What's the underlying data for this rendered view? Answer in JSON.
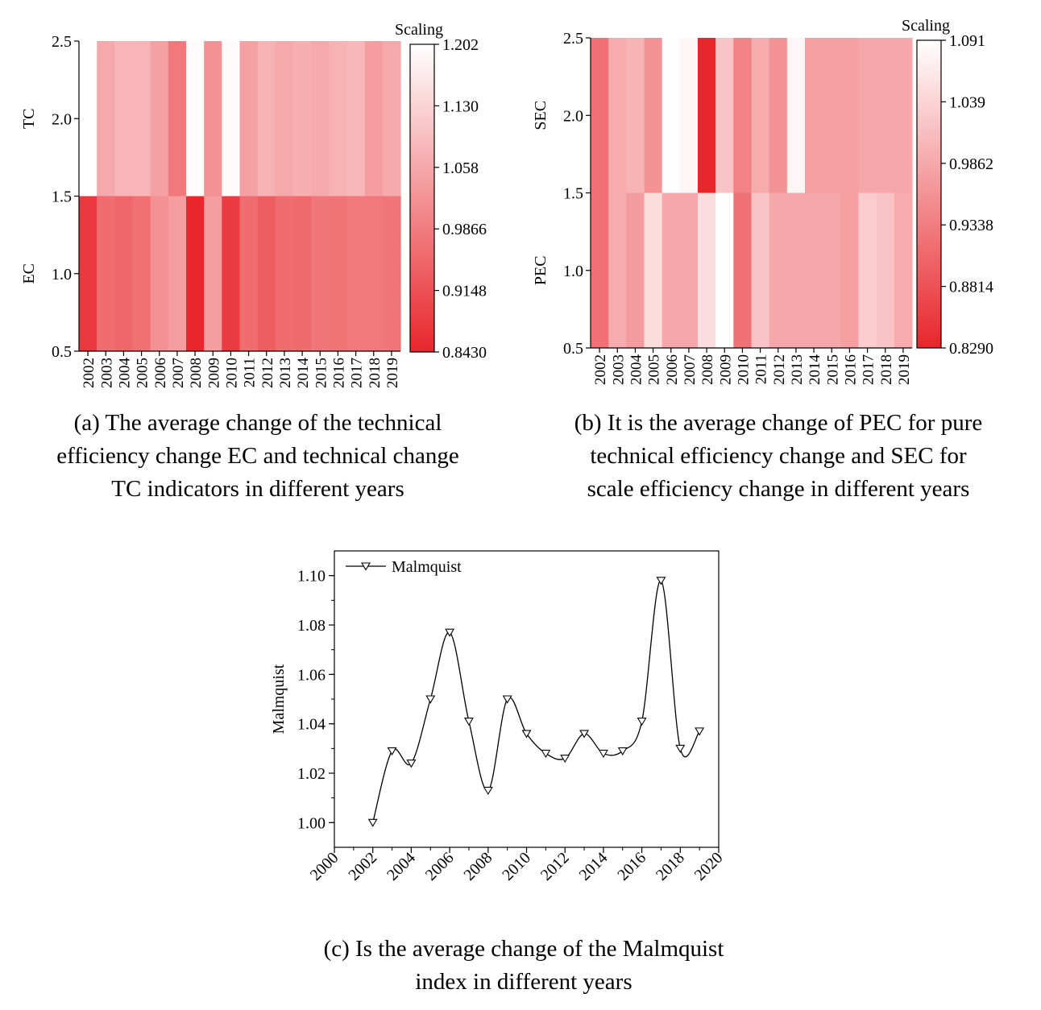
{
  "chart_data": [
    {
      "type": "heatmap",
      "panel": "a",
      "categories": [
        "2002",
        "2003",
        "2004",
        "2005",
        "2006",
        "2007",
        "2008",
        "2009",
        "2010",
        "2011",
        "2012",
        "2013",
        "2014",
        "2015",
        "2016",
        "2017",
        "2018",
        "2019"
      ],
      "rows": [
        {
          "name": "TC",
          "values": [
            1.202,
            1.06,
            1.08,
            1.08,
            1.045,
            0.98,
            1.195,
            1.02,
            1.195,
            1.045,
            1.075,
            1.06,
            1.07,
            1.06,
            1.075,
            1.085,
            1.04,
            1.06
          ]
        },
        {
          "name": "EC",
          "values": [
            0.875,
            0.96,
            0.95,
            0.965,
            1.02,
            1.04,
            0.843,
            1.04,
            0.88,
            0.96,
            0.935,
            0.96,
            0.955,
            0.975,
            0.97,
            0.98,
            0.98,
            0.975
          ]
        }
      ],
      "yticks": [
        "0.5",
        "1.0",
        "1.5",
        "2.0",
        "2.5"
      ],
      "ylim": [
        0.5,
        2.5
      ],
      "ylabels": [
        "TC",
        "EC"
      ],
      "colorbar": {
        "title": "Scaling",
        "min": 0.843,
        "max": 1.202,
        "ticks": [
          "1.202",
          "1.130",
          "1.058",
          "0.9866",
          "0.9148",
          "0.8430"
        ],
        "low_color": "#e8262b",
        "high_color": "#ffffff"
      },
      "caption": [
        "(a) The average change of the technical",
        "efficiency change EC and technical change",
        "TC indicators in different years"
      ]
    },
    {
      "type": "heatmap",
      "panel": "b",
      "categories": [
        "2002",
        "2003",
        "2004",
        "2005",
        "2006",
        "2007",
        "2008",
        "2009",
        "2010",
        "2011",
        "2012",
        "2013",
        "2014",
        "2015",
        "2016",
        "2017",
        "2018",
        "2019"
      ],
      "rows": [
        {
          "name": "SEC",
          "values": [
            0.92,
            0.99,
            1.0,
            0.96,
            1.09,
            1.08,
            0.83,
            1.02,
            0.94,
            0.99,
            0.96,
            1.08,
            0.975,
            0.975,
            0.975,
            0.985,
            0.985,
            0.985
          ]
        },
        {
          "name": "PEC",
          "values": [
            0.92,
            0.99,
            0.97,
            1.05,
            0.985,
            0.985,
            1.05,
            1.091,
            0.92,
            1.02,
            0.985,
            0.985,
            0.985,
            0.985,
            0.975,
            1.03,
            1.02,
            0.99
          ]
        }
      ],
      "yticks": [
        "0.5",
        "1.0",
        "1.5",
        "2.0",
        "2.5"
      ],
      "ylim": [
        0.5,
        2.5
      ],
      "ylabels": [
        "SEC",
        "PEC"
      ],
      "colorbar": {
        "title": "Scaling",
        "min": 0.829,
        "max": 1.091,
        "ticks": [
          "1.091",
          "1.039",
          "0.9862",
          "0.9338",
          "0.8814",
          "0.8290"
        ],
        "low_color": "#e8262b",
        "high_color": "#ffffff"
      },
      "caption": [
        "(b) It is the average change of PEC for pure",
        "technical efficiency change and SEC for",
        "scale efficiency change in different years"
      ]
    },
    {
      "type": "line",
      "panel": "c",
      "series": [
        {
          "name": "Malmquist",
          "x": [
            2002,
            2003,
            2004,
            2005,
            2006,
            2007,
            2008,
            2009,
            2010,
            2011,
            2012,
            2013,
            2014,
            2015,
            2016,
            2017,
            2018,
            2019
          ],
          "values": [
            1.0,
            1.029,
            1.024,
            1.05,
            1.077,
            1.041,
            1.013,
            1.05,
            1.036,
            1.028,
            1.026,
            1.036,
            1.028,
            1.029,
            1.041,
            1.098,
            1.03,
            1.037
          ]
        }
      ],
      "xlim": [
        2000,
        2020
      ],
      "ylim": [
        0.99,
        1.11
      ],
      "xticks": [
        "2000",
        "2002",
        "2004",
        "2006",
        "2008",
        "2010",
        "2012",
        "2014",
        "2016",
        "2018",
        "2020"
      ],
      "yticks": [
        "1.00",
        "1.02",
        "1.04",
        "1.06",
        "1.08",
        "1.10"
      ],
      "ylabel": "Malmquist",
      "legend": "top-left",
      "caption": [
        "(c) Is the average change of the Malmquist",
        "index in different years"
      ]
    }
  ]
}
